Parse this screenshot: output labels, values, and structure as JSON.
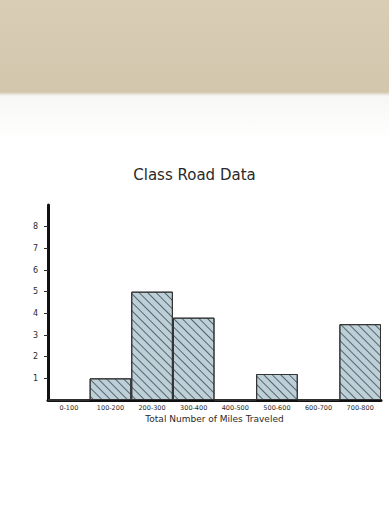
{
  "chart_data": {
    "type": "bar",
    "title": "Class Road Data",
    "x_label": "Total Number of Miles Traveled",
    "categories": [
      "0-100",
      "100-200",
      "200-300",
      "300-400",
      "400-500",
      "500-600",
      "600-700",
      "700-800"
    ],
    "values": [
      0,
      1,
      5,
      3.8,
      0,
      1.2,
      0,
      3.5
    ],
    "color": "#bcd0da",
    "ylim": [
      0,
      9
    ],
    "yticks": [
      1,
      2,
      3,
      4,
      5,
      6,
      7,
      8
    ],
    "grid": false
  }
}
